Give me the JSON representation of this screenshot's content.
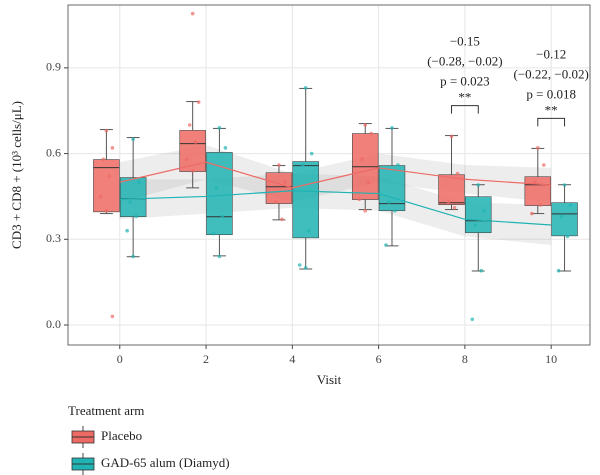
{
  "chart_data": {
    "type": "box",
    "x_label": "Visit",
    "y_label": "CD3 + CD8 + (10³ cells/μL)",
    "legend_title": "Treatment arm",
    "x": [
      0,
      2,
      4,
      6,
      8,
      10
    ],
    "xlim": [
      -1.2,
      10.9
    ],
    "ylim": [
      -0.07,
      1.12
    ],
    "xticks": [
      0,
      2,
      4,
      6,
      8,
      10
    ],
    "yticks": [
      {
        "value": 0,
        "label": "0.0"
      },
      0.3,
      0.6,
      0.9
    ],
    "grid": true,
    "series": [
      {
        "name": "Placebo",
        "color": "#ee6a64",
        "whisker_low": [
          0.39,
          0.48,
          0.368,
          0.404,
          0.404,
          0.39
        ],
        "q1": [
          0.396,
          0.537,
          0.425,
          0.439,
          0.421,
          0.418
        ],
        "median": [
          0.551,
          0.635,
          0.484,
          0.554,
          0.428,
          0.491
        ],
        "q3": [
          0.579,
          0.681,
          0.533,
          0.67,
          0.526,
          0.519
        ],
        "whisker_high": [
          0.684,
          0.782,
          0.558,
          0.705,
          0.663,
          0.618
        ],
        "smooth": [
          0.5,
          0.57,
          0.48,
          0.55,
          0.51,
          0.49
        ],
        "band_lower": [
          0.43,
          0.51,
          0.43,
          0.5,
          0.46,
          0.43
        ],
        "band_upper": [
          0.57,
          0.63,
          0.53,
          0.6,
          0.56,
          0.55
        ],
        "points": [
          [
            0,
            0.68
          ],
          [
            0,
            0.62
          ],
          [
            0,
            0.58
          ],
          [
            0,
            0.52
          ],
          [
            0,
            0.45
          ],
          [
            0,
            0.4
          ],
          [
            0,
            0.03
          ],
          [
            2,
            1.09
          ],
          [
            2,
            0.78
          ],
          [
            2,
            0.7
          ],
          [
            2,
            0.64
          ],
          [
            2,
            0.58
          ],
          [
            2,
            0.54
          ],
          [
            4,
            0.56
          ],
          [
            4,
            0.5
          ],
          [
            4,
            0.43
          ],
          [
            4,
            0.37
          ],
          [
            6,
            0.7
          ],
          [
            6,
            0.67
          ],
          [
            6,
            0.58
          ],
          [
            6,
            0.5
          ],
          [
            6,
            0.44
          ],
          [
            6,
            0.4
          ],
          [
            8,
            0.66
          ],
          [
            8,
            0.53
          ],
          [
            8,
            0.43
          ],
          [
            8,
            0.41
          ],
          [
            10,
            0.62
          ],
          [
            10,
            0.56
          ],
          [
            10,
            0.5
          ],
          [
            10,
            0.42
          ],
          [
            10,
            0.39
          ]
        ]
      },
      {
        "name": "GAD-65 alum (Diamyd)",
        "color": "#1fb3b3",
        "whisker_low": [
          0.239,
          0.242,
          0.196,
          0.277,
          0.189,
          0.189
        ],
        "q1": [
          0.379,
          0.316,
          0.305,
          0.4,
          0.323,
          0.312
        ],
        "median": [
          0.442,
          0.379,
          0.558,
          0.425,
          0.365,
          0.389
        ],
        "q3": [
          0.516,
          0.604,
          0.572,
          0.558,
          0.449,
          0.428
        ],
        "whisker_high": [
          0.656,
          0.688,
          0.828,
          0.688,
          0.491,
          0.491
        ],
        "smooth": [
          0.44,
          0.45,
          0.47,
          0.46,
          0.37,
          0.35
        ],
        "band_lower": [
          0.37,
          0.39,
          0.41,
          0.4,
          0.31,
          0.28
        ],
        "band_upper": [
          0.51,
          0.51,
          0.53,
          0.52,
          0.43,
          0.42
        ],
        "points": [
          [
            0,
            0.65
          ],
          [
            0,
            0.5
          ],
          [
            0,
            0.43
          ],
          [
            0,
            0.38
          ],
          [
            0,
            0.33
          ],
          [
            0,
            0.24
          ],
          [
            2,
            0.69
          ],
          [
            2,
            0.62
          ],
          [
            2,
            0.48
          ],
          [
            2,
            0.38
          ],
          [
            2,
            0.32
          ],
          [
            2,
            0.24
          ],
          [
            4,
            0.83
          ],
          [
            4,
            0.6
          ],
          [
            4,
            0.56
          ],
          [
            4,
            0.33
          ],
          [
            4,
            0.21
          ],
          [
            4,
            0.2
          ],
          [
            6,
            0.69
          ],
          [
            6,
            0.56
          ],
          [
            6,
            0.43
          ],
          [
            6,
            0.4
          ],
          [
            6,
            0.28
          ],
          [
            8,
            0.49
          ],
          [
            8,
            0.4
          ],
          [
            8,
            0.35
          ],
          [
            8,
            0.19
          ],
          [
            8,
            0.02
          ],
          [
            10,
            0.49
          ],
          [
            10,
            0.42
          ],
          [
            10,
            0.38
          ],
          [
            10,
            0.31
          ],
          [
            10,
            0.19
          ]
        ]
      }
    ],
    "annotations": [
      {
        "x": 8,
        "lines": [
          "−0.15",
          "(−0.28, −0.02)",
          "p = 0.023"
        ],
        "sig": "**"
      },
      {
        "x": 10,
        "lines": [
          "−0.12",
          "(−0.22, −0.02)",
          "p = 0.018"
        ],
        "sig": "**"
      }
    ]
  }
}
